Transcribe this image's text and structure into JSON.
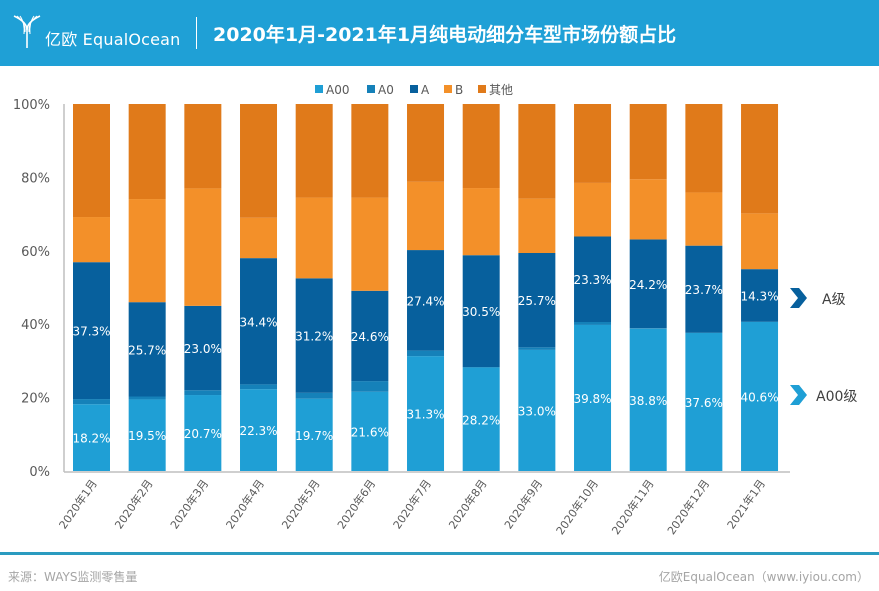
{
  "header": {
    "brand": "亿欧 EqualOcean",
    "title": "2020年1月-2021年1月纯电动细分车型市场份额占比"
  },
  "footer": {
    "source": "来源：WAYS监测零售量",
    "credit": "亿欧EqualOcean（www.iyiou.com）"
  },
  "annotations": [
    {
      "label": "A级",
      "color": "#07609d"
    },
    {
      "label": "A00级",
      "color": "#1f9fd5"
    }
  ],
  "chart_data": {
    "type": "bar",
    "stacked": true,
    "title": "2020年1月-2021年1月纯电动细分车型市场份额占比",
    "xlabel": "",
    "ylabel": "",
    "ylim": [
      0,
      100
    ],
    "yticks": [
      "0%",
      "20%",
      "40%",
      "60%",
      "80%",
      "100%"
    ],
    "legend_position": "top-center",
    "categories": [
      "2020年1月",
      "2020年2月",
      "2020年3月",
      "2020年4月",
      "2020年5月",
      "2020年6月",
      "2020年7月",
      "2020年8月",
      "2020年9月",
      "2020年10月",
      "2020年11月",
      "2020年12月",
      "2021年1月"
    ],
    "series": [
      {
        "name": "A00",
        "color": "#1f9fd5",
        "labeled": true,
        "values": [
          18.2,
          19.5,
          20.7,
          22.3,
          19.7,
          21.6,
          31.3,
          28.2,
          33.0,
          39.8,
          38.8,
          37.6,
          40.6
        ]
      },
      {
        "name": "A0",
        "color": "#1581b9",
        "labeled": false,
        "values": [
          1.4,
          0.8,
          1.3,
          1.3,
          1.6,
          2.9,
          1.5,
          0.1,
          0.7,
          0.8,
          0.1,
          0.1,
          0.1
        ]
      },
      {
        "name": "A",
        "color": "#07609d",
        "labeled": true,
        "values": [
          37.3,
          25.7,
          23.0,
          34.4,
          31.2,
          24.6,
          27.4,
          30.5,
          25.7,
          23.3,
          24.2,
          23.7,
          14.3
        ]
      },
      {
        "name": "B",
        "color": "#f39029",
        "labeled": false,
        "values": [
          12.3,
          28.1,
          32.0,
          11.0,
          22.0,
          25.4,
          18.6,
          18.3,
          14.8,
          14.6,
          16.4,
          14.5,
          15.2
        ]
      },
      {
        "name": "其他",
        "color": "#e07a1a",
        "labeled": false,
        "values": [
          30.8,
          25.9,
          23.0,
          31.0,
          25.5,
          25.5,
          21.2,
          22.9,
          25.8,
          21.5,
          20.5,
          24.1,
          29.8
        ]
      }
    ]
  }
}
